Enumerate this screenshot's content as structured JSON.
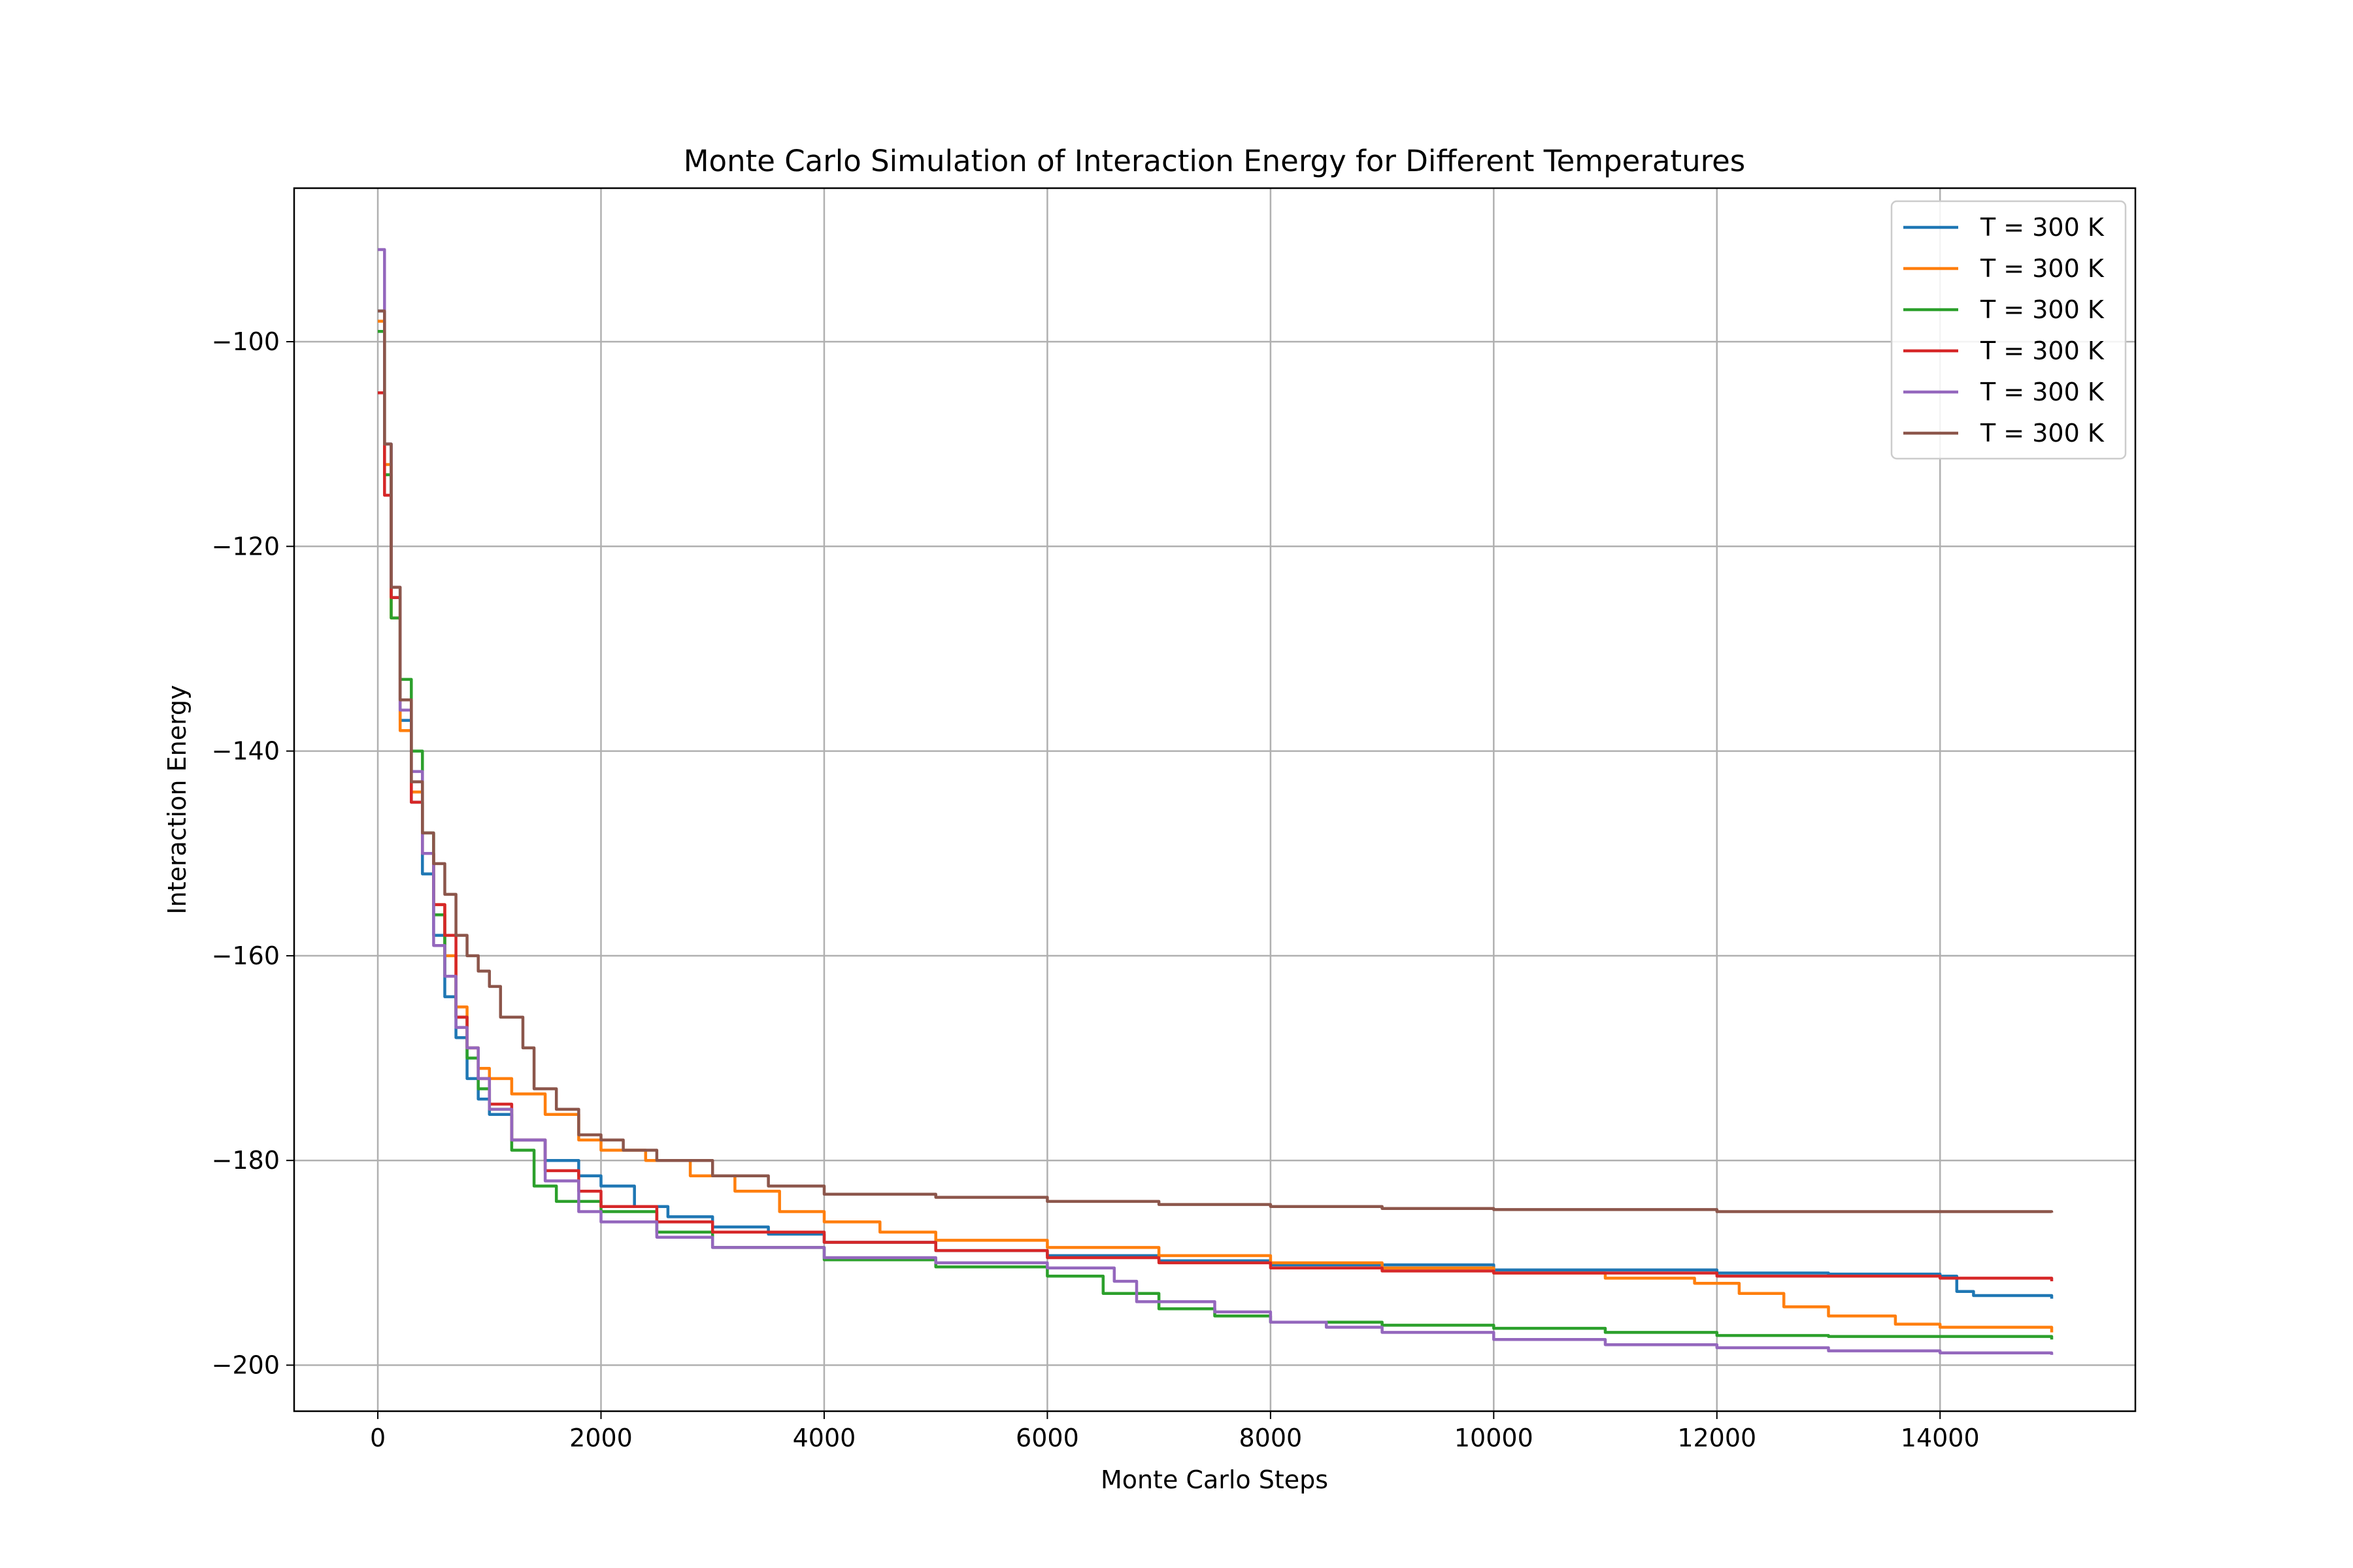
{
  "chart_data": {
    "type": "line",
    "title": "Monte Carlo Simulation of Interaction Energy for Different Temperatures",
    "xlabel": "Monte Carlo Steps",
    "ylabel": "Interaction Energy",
    "xlim": [
      -750,
      15750
    ],
    "ylim": [
      -204.5,
      -85
    ],
    "xticks": [
      0,
      2000,
      4000,
      6000,
      8000,
      10000,
      12000,
      14000
    ],
    "yticks": [
      -100,
      -120,
      -140,
      -160,
      -180,
      -200
    ],
    "xtick_labels": [
      "0",
      "2000",
      "4000",
      "6000",
      "8000",
      "10000",
      "12000",
      "14000"
    ],
    "ytick_labels": [
      "−100",
      "−120",
      "−140",
      "−160",
      "−180",
      "−200"
    ],
    "grid": true,
    "legend_position": "top-right",
    "series": [
      {
        "name": "T = 300 K",
        "color": "#1f77b4",
        "points": [
          [
            0,
            -97
          ],
          [
            60,
            -110
          ],
          [
            120,
            -125
          ],
          [
            200,
            -137
          ],
          [
            300,
            -145
          ],
          [
            400,
            -152
          ],
          [
            500,
            -158
          ],
          [
            600,
            -164
          ],
          [
            700,
            -168
          ],
          [
            800,
            -172
          ],
          [
            900,
            -174
          ],
          [
            1000,
            -175.5
          ],
          [
            1200,
            -178
          ],
          [
            1500,
            -180
          ],
          [
            1800,
            -181.5
          ],
          [
            2000,
            -182.5
          ],
          [
            2300,
            -184.5
          ],
          [
            2600,
            -185.5
          ],
          [
            3000,
            -186.5
          ],
          [
            3500,
            -187.2
          ],
          [
            4000,
            -188
          ],
          [
            5000,
            -188.8
          ],
          [
            6000,
            -189.3
          ],
          [
            7000,
            -189.8
          ],
          [
            8000,
            -190.2
          ],
          [
            10000,
            -190.7
          ],
          [
            12000,
            -191
          ],
          [
            13000,
            -191.1
          ],
          [
            14000,
            -191.3
          ],
          [
            14150,
            -192.8
          ],
          [
            14300,
            -193.2
          ],
          [
            15000,
            -193.5
          ]
        ]
      },
      {
        "name": "T = 300 K",
        "color": "#ff7f0e",
        "points": [
          [
            0,
            -98
          ],
          [
            60,
            -112
          ],
          [
            120,
            -127
          ],
          [
            200,
            -138
          ],
          [
            300,
            -144
          ],
          [
            400,
            -150
          ],
          [
            500,
            -155
          ],
          [
            600,
            -160
          ],
          [
            700,
            -165
          ],
          [
            800,
            -169
          ],
          [
            900,
            -171
          ],
          [
            1000,
            -172
          ],
          [
            1200,
            -173.5
          ],
          [
            1500,
            -175.5
          ],
          [
            1800,
            -178
          ],
          [
            2000,
            -179
          ],
          [
            2400,
            -180
          ],
          [
            2800,
            -181.5
          ],
          [
            3200,
            -183
          ],
          [
            3600,
            -185
          ],
          [
            4000,
            -186
          ],
          [
            4500,
            -187
          ],
          [
            5000,
            -187.8
          ],
          [
            6000,
            -188.5
          ],
          [
            7000,
            -189.3
          ],
          [
            8000,
            -190
          ],
          [
            9000,
            -190.5
          ],
          [
            10000,
            -191
          ],
          [
            11000,
            -191.5
          ],
          [
            11800,
            -192
          ],
          [
            12200,
            -193
          ],
          [
            12600,
            -194.3
          ],
          [
            13000,
            -195.2
          ],
          [
            13600,
            -196
          ],
          [
            14000,
            -196.3
          ],
          [
            15000,
            -196.8
          ]
        ]
      },
      {
        "name": "T = 300 K",
        "color": "#2ca02c",
        "points": [
          [
            0,
            -99
          ],
          [
            60,
            -113
          ],
          [
            120,
            -127
          ],
          [
            200,
            -133
          ],
          [
            300,
            -140
          ],
          [
            400,
            -148
          ],
          [
            500,
            -156
          ],
          [
            600,
            -162
          ],
          [
            700,
            -166
          ],
          [
            800,
            -170
          ],
          [
            900,
            -173
          ],
          [
            1000,
            -175
          ],
          [
            1200,
            -179
          ],
          [
            1400,
            -182.5
          ],
          [
            1600,
            -184
          ],
          [
            2000,
            -185
          ],
          [
            2500,
            -187
          ],
          [
            3000,
            -188.5
          ],
          [
            4000,
            -189.7
          ],
          [
            5000,
            -190.4
          ],
          [
            6000,
            -191.3
          ],
          [
            6500,
            -193
          ],
          [
            7000,
            -194.5
          ],
          [
            7500,
            -195.2
          ],
          [
            8000,
            -195.8
          ],
          [
            9000,
            -196.1
          ],
          [
            10000,
            -196.4
          ],
          [
            11000,
            -196.8
          ],
          [
            12000,
            -197.1
          ],
          [
            13000,
            -197.2
          ],
          [
            15000,
            -197.5
          ]
        ]
      },
      {
        "name": "T = 300 K",
        "color": "#d62728",
        "points": [
          [
            0,
            -105
          ],
          [
            60,
            -115
          ],
          [
            120,
            -125
          ],
          [
            200,
            -135
          ],
          [
            300,
            -145
          ],
          [
            400,
            -150
          ],
          [
            500,
            -155
          ],
          [
            600,
            -158
          ],
          [
            700,
            -166
          ],
          [
            800,
            -169
          ],
          [
            900,
            -172
          ],
          [
            1000,
            -174.5
          ],
          [
            1200,
            -178
          ],
          [
            1500,
            -181
          ],
          [
            1800,
            -183
          ],
          [
            2000,
            -184.5
          ],
          [
            2500,
            -186
          ],
          [
            3000,
            -187
          ],
          [
            4000,
            -188
          ],
          [
            5000,
            -188.8
          ],
          [
            6000,
            -189.5
          ],
          [
            7000,
            -190
          ],
          [
            8000,
            -190.5
          ],
          [
            9000,
            -190.8
          ],
          [
            10000,
            -191
          ],
          [
            12000,
            -191.3
          ],
          [
            14000,
            -191.5
          ],
          [
            15000,
            -191.8
          ]
        ]
      },
      {
        "name": "T = 300 K",
        "color": "#9467bd",
        "points": [
          [
            0,
            -91
          ],
          [
            60,
            -110
          ],
          [
            120,
            -124
          ],
          [
            200,
            -136
          ],
          [
            300,
            -142
          ],
          [
            400,
            -150
          ],
          [
            500,
            -159
          ],
          [
            600,
            -162
          ],
          [
            700,
            -167
          ],
          [
            800,
            -169
          ],
          [
            900,
            -172
          ],
          [
            1000,
            -175
          ],
          [
            1200,
            -178
          ],
          [
            1500,
            -182
          ],
          [
            1800,
            -185
          ],
          [
            2000,
            -186
          ],
          [
            2500,
            -187.5
          ],
          [
            3000,
            -188.5
          ],
          [
            4000,
            -189.5
          ],
          [
            5000,
            -190
          ],
          [
            6000,
            -190.5
          ],
          [
            6600,
            -191.8
          ],
          [
            6800,
            -193.8
          ],
          [
            7500,
            -194.8
          ],
          [
            8000,
            -195.8
          ],
          [
            8500,
            -196.3
          ],
          [
            9000,
            -196.8
          ],
          [
            10000,
            -197.5
          ],
          [
            11000,
            -198
          ],
          [
            12000,
            -198.3
          ],
          [
            13000,
            -198.6
          ],
          [
            14000,
            -198.8
          ],
          [
            15000,
            -199
          ]
        ]
      },
      {
        "name": "T = 300 K",
        "color": "#8c564b",
        "points": [
          [
            0,
            -97
          ],
          [
            60,
            -110
          ],
          [
            120,
            -124
          ],
          [
            200,
            -135
          ],
          [
            300,
            -143
          ],
          [
            400,
            -148
          ],
          [
            500,
            -151
          ],
          [
            600,
            -154
          ],
          [
            700,
            -158
          ],
          [
            800,
            -160
          ],
          [
            900,
            -161.5
          ],
          [
            1000,
            -163
          ],
          [
            1100,
            -166
          ],
          [
            1300,
            -169
          ],
          [
            1400,
            -173
          ],
          [
            1600,
            -175
          ],
          [
            1800,
            -177.5
          ],
          [
            2000,
            -178
          ],
          [
            2200,
            -179
          ],
          [
            2500,
            -180
          ],
          [
            3000,
            -181.5
          ],
          [
            3500,
            -182.5
          ],
          [
            4000,
            -183.3
          ],
          [
            5000,
            -183.6
          ],
          [
            6000,
            -184
          ],
          [
            7000,
            -184.3
          ],
          [
            8000,
            -184.5
          ],
          [
            9000,
            -184.7
          ],
          [
            10000,
            -184.8
          ],
          [
            12000,
            -185
          ],
          [
            15000,
            -185.1
          ]
        ]
      }
    ]
  }
}
